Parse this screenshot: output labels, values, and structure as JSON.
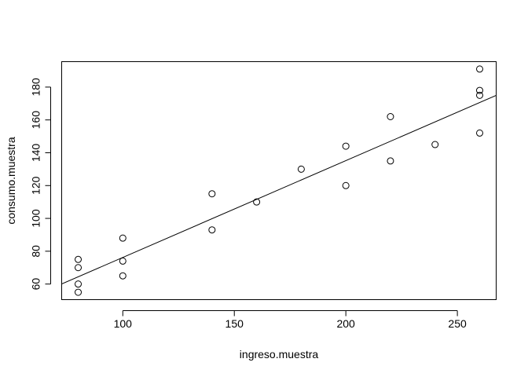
{
  "chart_data": {
    "type": "scatter",
    "title": "",
    "xlabel": "ingreso.muestra",
    "ylabel": "consumo.muestra",
    "xlim": [
      72.6,
      267.4
    ],
    "ylim": [
      50.5,
      195.5
    ],
    "x_ticks": [
      100,
      150,
      200,
      250
    ],
    "y_ticks": [
      60,
      80,
      100,
      120,
      140,
      160,
      180
    ],
    "grid": false,
    "legend": "none",
    "points": [
      {
        "x": 80,
        "y": 55
      },
      {
        "x": 80,
        "y": 60
      },
      {
        "x": 80,
        "y": 70
      },
      {
        "x": 80,
        "y": 75
      },
      {
        "x": 100,
        "y": 65
      },
      {
        "x": 100,
        "y": 74
      },
      {
        "x": 100,
        "y": 88
      },
      {
        "x": 140,
        "y": 93
      },
      {
        "x": 140,
        "y": 115
      },
      {
        "x": 160,
        "y": 110
      },
      {
        "x": 180,
        "y": 130
      },
      {
        "x": 200,
        "y": 120
      },
      {
        "x": 200,
        "y": 144
      },
      {
        "x": 220,
        "y": 135
      },
      {
        "x": 220,
        "y": 162
      },
      {
        "x": 240,
        "y": 145
      },
      {
        "x": 260,
        "y": 152
      },
      {
        "x": 260,
        "y": 175
      },
      {
        "x": 260,
        "y": 178
      },
      {
        "x": 260,
        "y": 191
      }
    ],
    "regression_line": {
      "intercept": 17.2,
      "slope": 0.59
    }
  },
  "colors": {
    "points": "#000000",
    "line": "#000000",
    "background": "#ffffff"
  }
}
